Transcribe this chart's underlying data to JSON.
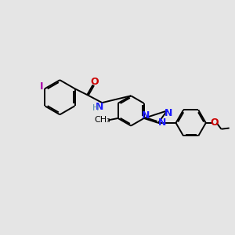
{
  "background_color": "#e5e5e5",
  "bond_color": "#000000",
  "N_color": "#1a1aff",
  "O_color": "#cc0000",
  "I_color": "#aa00aa",
  "H_color": "#5588aa",
  "line_width": 1.4,
  "dbo": 0.055,
  "figsize": [
    3.0,
    3.0
  ],
  "dpi": 100,
  "xlim": [
    -1.5,
    10.5
  ],
  "ylim": [
    1.0,
    8.5
  ]
}
